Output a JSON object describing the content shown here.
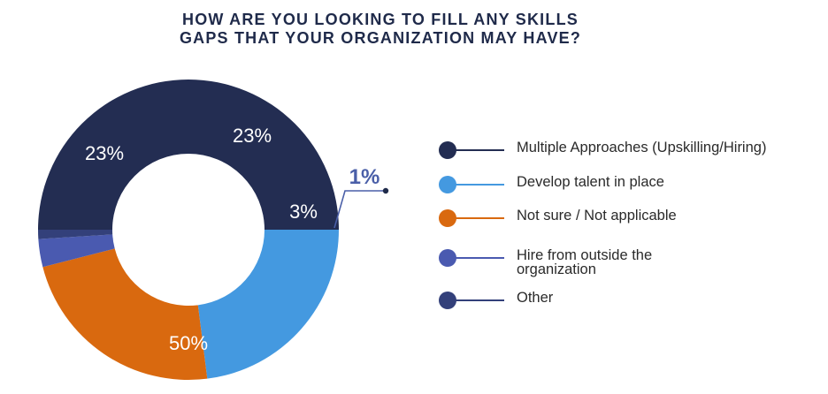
{
  "chart_data": {
    "type": "pie",
    "title": "HOW ARE YOU LOOKING TO FILL ANY SKILLS GAPS THAT YOUR ORGANIZATION MAY HAVE?",
    "title_lines": [
      "HOW ARE YOU LOOKING TO FILL ANY SKILLS",
      "GAPS THAT YOUR ORGANIZATION MAY HAVE?"
    ],
    "donut": true,
    "legend_position": "right",
    "slices": [
      {
        "label": "Multiple Approaches (Upskilling/Hiring)",
        "value": 50,
        "value_label": "50%",
        "color": "#232d52"
      },
      {
        "label": "Develop talent in place",
        "value": 23,
        "value_label": "23%",
        "color": "#4499e0"
      },
      {
        "label": "Not sure / Not applicable",
        "value": 23,
        "value_label": "23%",
        "color": "#d9690f"
      },
      {
        "label": "Hire from outside the organization",
        "value": 3,
        "value_label": "3%",
        "color": "#4a5ab0"
      },
      {
        "label": "Other",
        "value": 1,
        "value_label": "1%",
        "color": "#33407a"
      }
    ]
  },
  "legend": {
    "items": [
      {
        "lines": [
          "Multiple Approaches (Upskilling/Hiring)"
        ],
        "color": "#232d52"
      },
      {
        "lines": [
          "Develop talent in place"
        ],
        "color": "#4499e0"
      },
      {
        "lines": [
          "Not sure / Not applicable"
        ],
        "color": "#d9690f"
      },
      {
        "lines": [
          "Hire from outside the",
          "organization"
        ],
        "color": "#4a5ab0"
      },
      {
        "lines": [
          "Other"
        ],
        "color": "#33407a"
      }
    ]
  }
}
